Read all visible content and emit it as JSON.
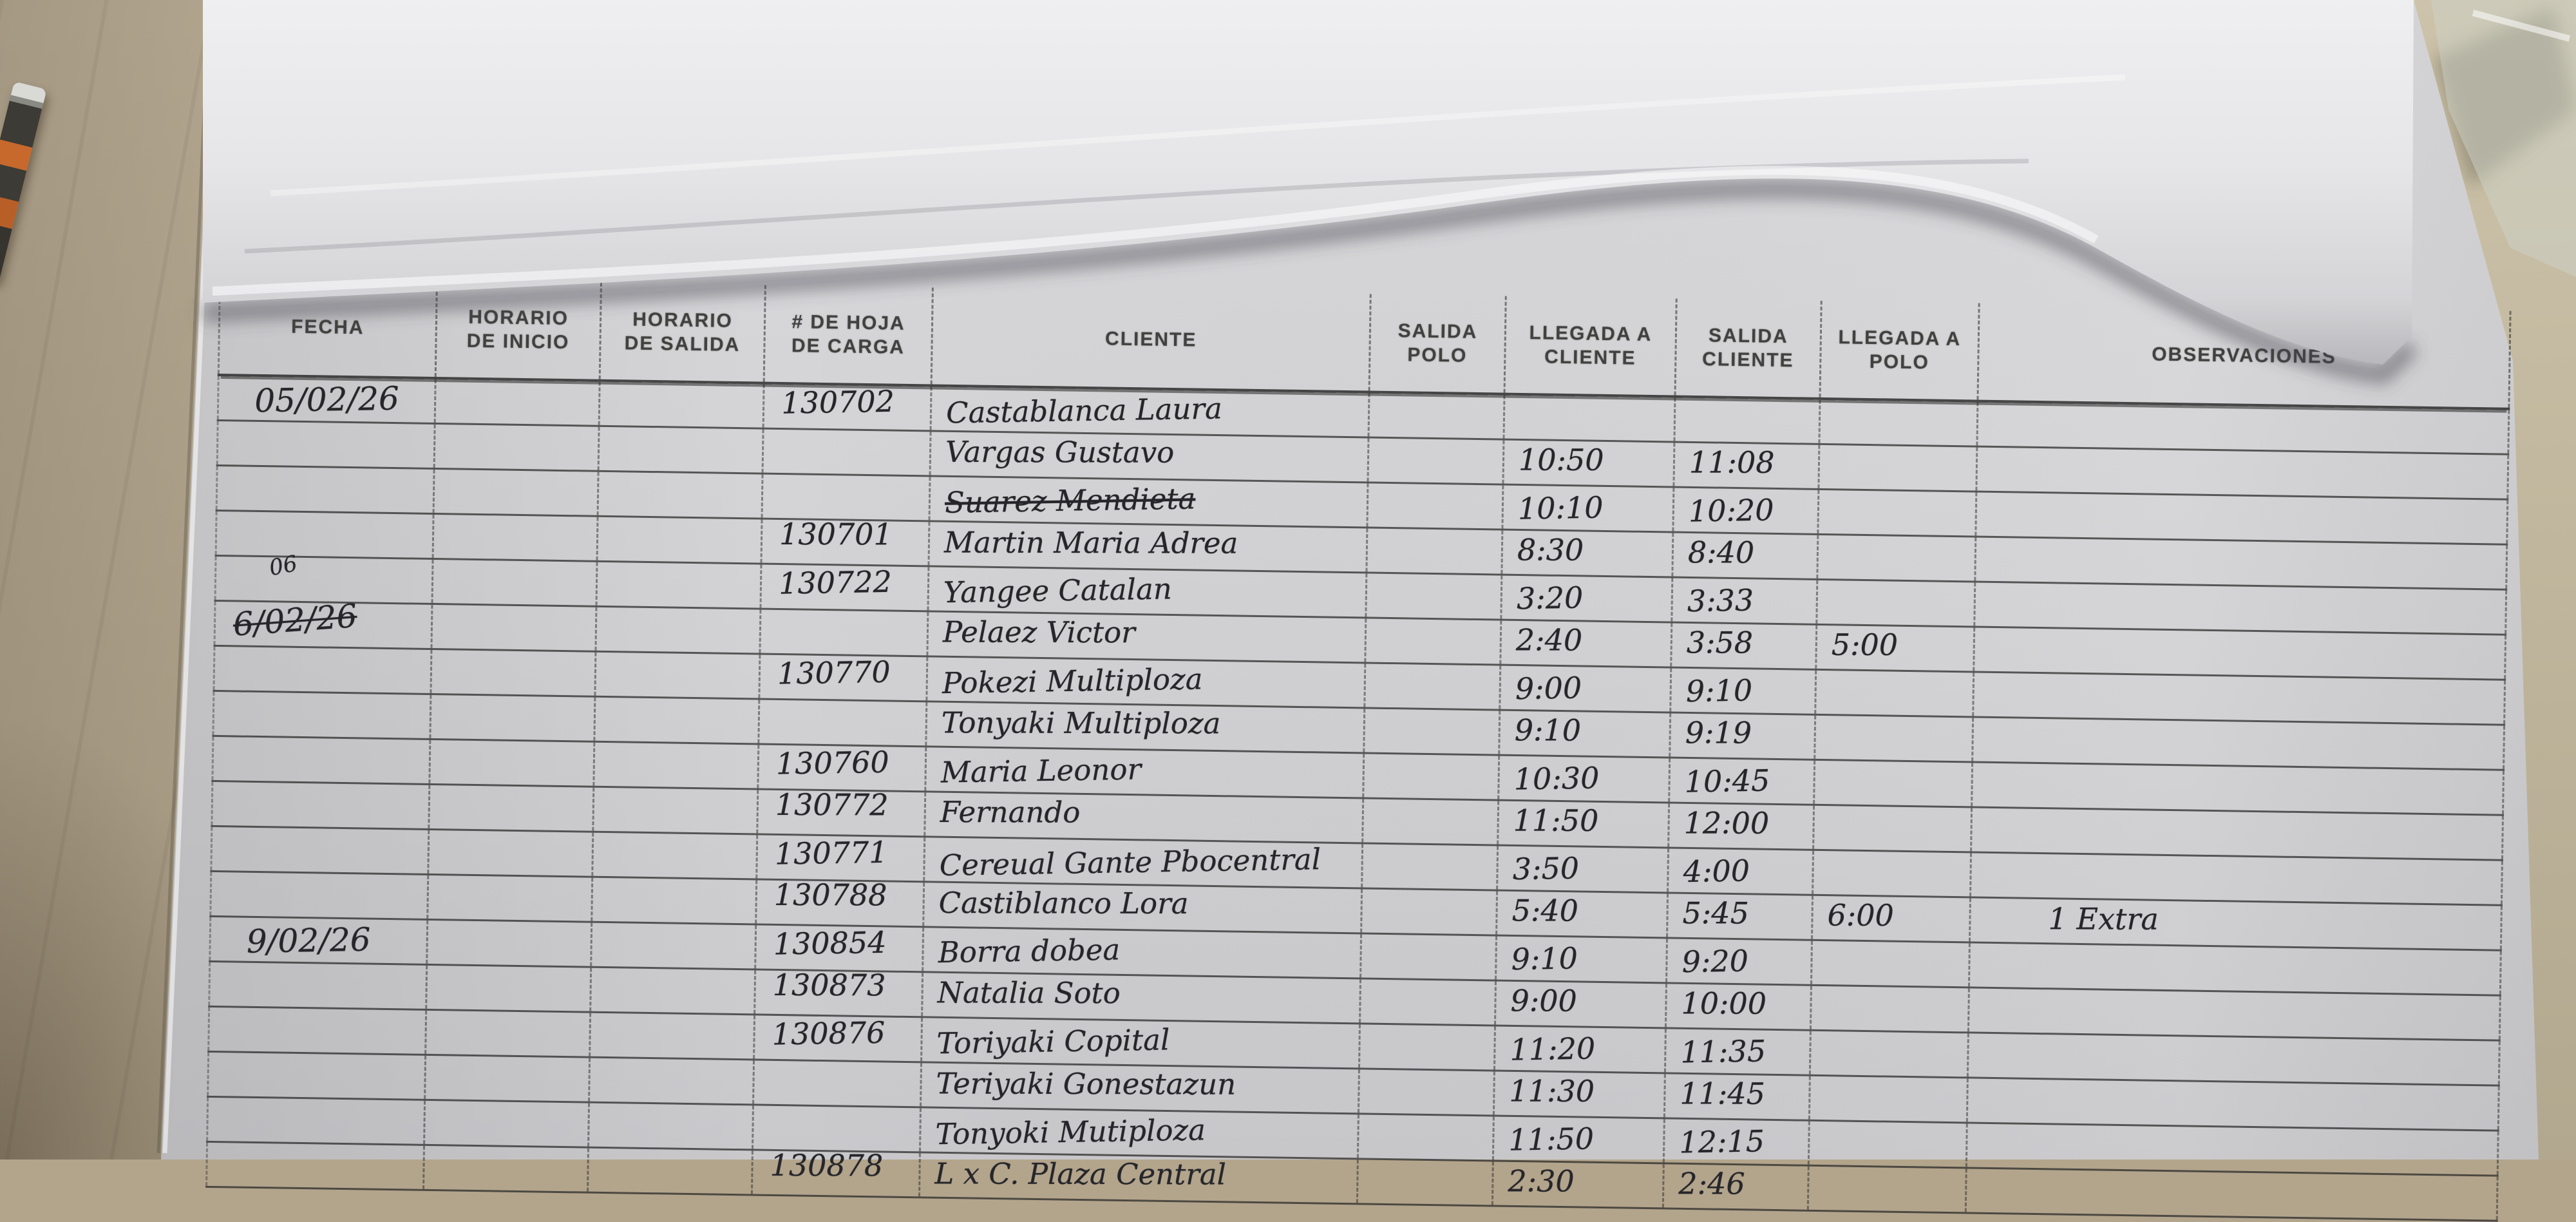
{
  "scene": {
    "desk_color": "#b3a58c",
    "wall_color": "#c9bfa6",
    "paper_color": "#d3d3d5",
    "fold_color": "#e6e6e8",
    "ink_color": "#26262a",
    "pen_accent_color": "#c7692c"
  },
  "table": {
    "columns": [
      {
        "key": "fecha",
        "label": "FECHA"
      },
      {
        "key": "inicio",
        "label": "HORARIO\nDE INICIO"
      },
      {
        "key": "salida",
        "label": "HORARIO\nDE SALIDA"
      },
      {
        "key": "hoja",
        "label": "# DE HOJA\nDE CARGA"
      },
      {
        "key": "cliente",
        "label": "CLIENTE"
      },
      {
        "key": "salida_polo",
        "label": "SALIDA\nPOLO"
      },
      {
        "key": "llegada_cliente",
        "label": "LLEGADA A\nCLIENTE"
      },
      {
        "key": "salida_cliente",
        "label": "SALIDA\nCLIENTE"
      },
      {
        "key": "llegada_polo",
        "label": "LLEGADA A\nPOLO"
      },
      {
        "key": "obs",
        "label": "OBSERVACIONES"
      }
    ],
    "rows": [
      {
        "fecha": "05/02/26",
        "inicio": "",
        "salida": "",
        "hoja": "130702",
        "cliente": "Castablanca Laura",
        "salida_polo": "",
        "llegada_cliente": "",
        "salida_cliente": "",
        "llegada_polo": "",
        "obs": ""
      },
      {
        "fecha": "",
        "inicio": "",
        "salida": "",
        "hoja": "",
        "cliente": "Vargas Gustavo",
        "salida_polo": "",
        "llegada_cliente": "10:50",
        "salida_cliente": "11:08",
        "llegada_polo": "",
        "obs": ""
      },
      {
        "fecha": "",
        "inicio": "",
        "salida": "",
        "hoja": "",
        "cliente": "Suarez Mendieta",
        "salida_polo": "",
        "llegada_cliente": "10:10",
        "salida_cliente": "10:20",
        "llegada_polo": "",
        "obs": "",
        "flags": {
          "cliente": "strike"
        }
      },
      {
        "fecha": "",
        "inicio": "",
        "salida": "",
        "hoja": "130701",
        "cliente": "Martin Maria Adrea",
        "salida_polo": "",
        "llegada_cliente": "8:30",
        "salida_cliente": "8:40",
        "llegada_polo": "",
        "obs": ""
      },
      {
        "fecha": "06",
        "inicio": "",
        "salida": "",
        "hoja": "130722",
        "cliente": "Yangee Catalan",
        "salida_polo": "",
        "llegada_cliente": "3:20",
        "salida_cliente": "3:33",
        "llegada_polo": "",
        "obs": "",
        "flags": {
          "fecha": "small"
        }
      },
      {
        "fecha": "6/02/26",
        "inicio": "",
        "salida": "",
        "hoja": "",
        "cliente": "Pelaez Victor",
        "salida_polo": "",
        "llegada_cliente": "2:40",
        "salida_cliente": "3:58",
        "llegada_polo": "5:00",
        "obs": "",
        "flags": {
          "fecha": "scribble"
        }
      },
      {
        "fecha": "",
        "inicio": "",
        "salida": "",
        "hoja": "130770",
        "cliente": "Pokezi Multiploza",
        "salida_polo": "",
        "llegada_cliente": "9:00",
        "salida_cliente": "9:10",
        "llegada_polo": "",
        "obs": ""
      },
      {
        "fecha": "",
        "inicio": "",
        "salida": "",
        "hoja": "",
        "cliente": "Tonyaki Multiploza",
        "salida_polo": "",
        "llegada_cliente": "9:10",
        "salida_cliente": "9:19",
        "llegada_polo": "",
        "obs": ""
      },
      {
        "fecha": "",
        "inicio": "",
        "salida": "",
        "hoja": "130760",
        "cliente": "Maria Leonor",
        "salida_polo": "",
        "llegada_cliente": "10:30",
        "salida_cliente": "10:45",
        "llegada_polo": "",
        "obs": ""
      },
      {
        "fecha": "",
        "inicio": "",
        "salida": "",
        "hoja": "130772",
        "cliente": "Fernando",
        "salida_polo": "",
        "llegada_cliente": "11:50",
        "salida_cliente": "12:00",
        "llegada_polo": "",
        "obs": ""
      },
      {
        "fecha": "",
        "inicio": "",
        "salida": "",
        "hoja": "130771",
        "cliente": "Cereual Gante Pbocentral",
        "salida_polo": "",
        "llegada_cliente": "3:50",
        "salida_cliente": "4:00",
        "llegada_polo": "",
        "obs": ""
      },
      {
        "fecha": "",
        "inicio": "",
        "salida": "",
        "hoja": "130788",
        "cliente": "Castiblanco Lora",
        "salida_polo": "",
        "llegada_cliente": "5:40",
        "salida_cliente": "5:45",
        "llegada_polo": "6:00",
        "obs": "1 Extra"
      },
      {
        "fecha": "9/02/26",
        "inicio": "",
        "salida": "",
        "hoja": "130854",
        "cliente": "Borra dobea",
        "salida_polo": "",
        "llegada_cliente": "9:10",
        "salida_cliente": "9:20",
        "llegada_polo": "",
        "obs": ""
      },
      {
        "fecha": "",
        "inicio": "",
        "salida": "",
        "hoja": "130873",
        "cliente": "Natalia Soto",
        "salida_polo": "",
        "llegada_cliente": "9:00",
        "salida_cliente": "10:00",
        "llegada_polo": "",
        "obs": ""
      },
      {
        "fecha": "",
        "inicio": "",
        "salida": "",
        "hoja": "130876",
        "cliente": "Toriyaki Copital",
        "salida_polo": "",
        "llegada_cliente": "11:20",
        "salida_cliente": "11:35",
        "llegada_polo": "",
        "obs": ""
      },
      {
        "fecha": "",
        "inicio": "",
        "salida": "",
        "hoja": "",
        "cliente": "Teriyaki Gonestazun",
        "salida_polo": "",
        "llegada_cliente": "11:30",
        "salida_cliente": "11:45",
        "llegada_polo": "",
        "obs": ""
      },
      {
        "fecha": "",
        "inicio": "",
        "salida": "",
        "hoja": "",
        "cliente": "Tonyoki Mutiploza",
        "salida_polo": "",
        "llegada_cliente": "11:50",
        "salida_cliente": "12:15",
        "llegada_polo": "",
        "obs": ""
      },
      {
        "fecha": "",
        "inicio": "",
        "salida": "",
        "hoja": "130878",
        "cliente": "L x C. Plaza Central",
        "salida_polo": "",
        "llegada_cliente": "2:30",
        "salida_cliente": "2:46",
        "llegada_polo": "",
        "obs": ""
      }
    ]
  }
}
